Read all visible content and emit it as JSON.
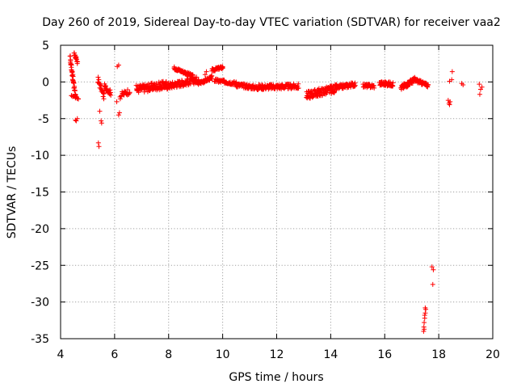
{
  "chart_data": {
    "type": "scatter",
    "title": "Day 260 of 2019, Sidereal Day-to-day VTEC variation (SDTVAR) for receiver vaa2",
    "xlabel": "GPS time / hours",
    "ylabel": "SDTVAR / TECUs",
    "xlim": [
      4,
      20
    ],
    "ylim": [
      -35,
      5
    ],
    "x_ticks": [
      4,
      6,
      8,
      10,
      12,
      14,
      16,
      18,
      20
    ],
    "y_ticks": [
      5,
      0,
      -5,
      -10,
      -15,
      -20,
      -25,
      -30,
      -35
    ],
    "x_tick_labels": [
      "4",
      "6",
      "8",
      "10",
      "12",
      "14",
      "16",
      "18",
      "20"
    ],
    "y_tick_labels": [
      "5",
      "0",
      "-5",
      "-10",
      "-15",
      "-20",
      "-25",
      "-30",
      "-35"
    ],
    "grid": true,
    "marker": "+",
    "series": [
      {
        "name": "vaa2",
        "color": "#ff0000",
        "segments": [
          {
            "x0": 4.35,
            "x1": 4.55,
            "y0": 3.2,
            "y1": -2.0,
            "n": 22,
            "amp": 0.8
          },
          {
            "x0": 4.5,
            "x1": 4.62,
            "y0": 4.0,
            "y1": 2.5,
            "n": 8,
            "amp": 0.5
          },
          {
            "x0": 4.4,
            "x1": 4.65,
            "y0": -1.8,
            "y1": -2.3,
            "n": 6,
            "amp": 0.3
          },
          {
            "x0": 5.38,
            "x1": 5.6,
            "y0": 0.3,
            "y1": -2.0,
            "n": 10,
            "amp": 0.8
          },
          {
            "x0": 5.62,
            "x1": 5.85,
            "y0": -0.6,
            "y1": -1.5,
            "n": 10,
            "amp": 0.7
          },
          {
            "x0": 6.2,
            "x1": 6.55,
            "y0": -1.9,
            "y1": -1.2,
            "n": 10,
            "amp": 0.9
          },
          {
            "x0": 6.8,
            "x1": 7.9,
            "y0": -1.0,
            "y1": -0.4,
            "n": 50,
            "amp": 1.1
          },
          {
            "x0": 7.9,
            "x1": 9.1,
            "y0": -0.6,
            "y1": 0.3,
            "n": 55,
            "amp": 0.9
          },
          {
            "x0": 8.2,
            "x1": 8.9,
            "y0": 1.9,
            "y1": 0.8,
            "n": 30,
            "amp": 0.4
          },
          {
            "x0": 9.1,
            "x1": 9.6,
            "y0": -0.2,
            "y1": 0.6,
            "n": 20,
            "amp": 0.5
          },
          {
            "x0": 9.6,
            "x1": 10.0,
            "y0": 1.6,
            "y1": 2.0,
            "n": 18,
            "amp": 0.4
          },
          {
            "x0": 9.7,
            "x1": 10.5,
            "y0": 0.2,
            "y1": -0.2,
            "n": 30,
            "amp": 0.5
          },
          {
            "x0": 10.5,
            "x1": 11.3,
            "y0": -0.4,
            "y1": -0.8,
            "n": 32,
            "amp": 0.6
          },
          {
            "x0": 11.3,
            "x1": 12.8,
            "y0": -0.7,
            "y1": -0.6,
            "n": 58,
            "amp": 0.7
          },
          {
            "x0": 13.1,
            "x1": 14.2,
            "y0": -1.8,
            "y1": -0.9,
            "n": 55,
            "amp": 1.1
          },
          {
            "x0": 14.2,
            "x1": 14.9,
            "y0": -0.8,
            "y1": -0.3,
            "n": 30,
            "amp": 0.6
          },
          {
            "x0": 15.2,
            "x1": 15.6,
            "y0": -0.5,
            "y1": -0.6,
            "n": 16,
            "amp": 0.5
          },
          {
            "x0": 15.8,
            "x1": 16.3,
            "y0": -0.2,
            "y1": -0.3,
            "n": 22,
            "amp": 0.6
          },
          {
            "x0": 16.6,
            "x1": 17.1,
            "y0": -0.8,
            "y1": 0.3,
            "n": 28,
            "amp": 0.7
          },
          {
            "x0": 17.1,
            "x1": 17.6,
            "y0": 0.3,
            "y1": -0.5,
            "n": 22,
            "amp": 0.5
          }
        ],
        "points": [
          [
            4.55,
            -5.2
          ],
          [
            4.58,
            -5.3
          ],
          [
            4.62,
            -5.0
          ],
          [
            5.45,
            -4.0
          ],
          [
            5.4,
            -8.3
          ],
          [
            5.42,
            -8.8
          ],
          [
            5.5,
            -5.3
          ],
          [
            5.52,
            -5.6
          ],
          [
            6.1,
            2.1
          ],
          [
            6.15,
            2.3
          ],
          [
            6.18,
            -4.2
          ],
          [
            6.15,
            -4.5
          ],
          [
            6.08,
            -2.7
          ],
          [
            9.35,
            1.0
          ],
          [
            9.4,
            1.4
          ],
          [
            17.5,
            -30.8
          ],
          [
            17.52,
            -31.0
          ],
          [
            17.5,
            -31.5
          ],
          [
            17.48,
            -32.2
          ],
          [
            17.46,
            -32.8
          ],
          [
            17.45,
            -33.4
          ],
          [
            17.44,
            -34.0
          ],
          [
            17.46,
            -33.7
          ],
          [
            17.48,
            -31.8
          ],
          [
            17.75,
            -25.2
          ],
          [
            17.8,
            -25.6
          ],
          [
            17.78,
            -27.6
          ],
          [
            18.35,
            -2.5
          ],
          [
            18.38,
            -2.9
          ],
          [
            18.4,
            -3.1
          ],
          [
            18.42,
            -2.7
          ],
          [
            18.4,
            0.1
          ],
          [
            18.48,
            0.3
          ],
          [
            18.5,
            1.4
          ],
          [
            18.85,
            -0.2
          ],
          [
            18.9,
            -0.4
          ],
          [
            19.5,
            -0.3
          ],
          [
            19.55,
            -1.0
          ],
          [
            19.52,
            -1.7
          ],
          [
            19.6,
            -0.7
          ]
        ]
      }
    ]
  }
}
